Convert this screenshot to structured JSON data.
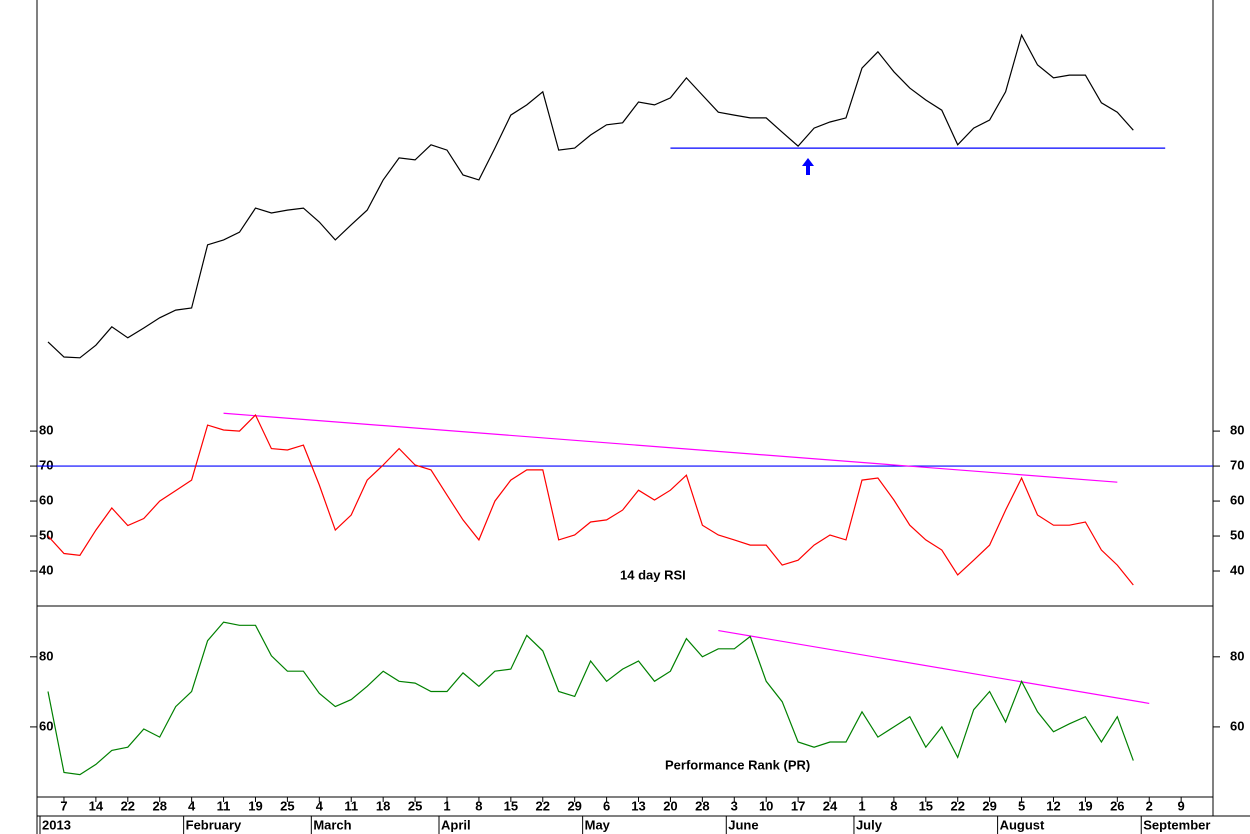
{
  "chart_data": {
    "type": "line",
    "categories": [
      null,
      "7",
      null,
      "14",
      null,
      "22",
      null,
      "28",
      null,
      "4",
      null,
      "11",
      null,
      "19",
      null,
      "25",
      null,
      "4",
      null,
      "11",
      null,
      "18",
      null,
      "25",
      null,
      "1",
      null,
      "8",
      null,
      "15",
      null,
      "22",
      null,
      "29",
      null,
      "6",
      null,
      "13",
      null,
      "20",
      null,
      "28",
      null,
      "3",
      null,
      "10",
      null,
      "17",
      null,
      "24",
      null,
      "1",
      null,
      "8",
      null,
      "15",
      null,
      "22",
      null,
      "29",
      null,
      "5",
      null,
      "12",
      null,
      "19",
      null,
      "26",
      null,
      "2",
      null,
      "9",
      null,
      null
    ],
    "months": [
      "2013",
      null,
      null,
      null,
      null,
      null,
      null,
      null,
      null,
      "February",
      null,
      null,
      null,
      null,
      null,
      null,
      null,
      "March",
      null,
      null,
      null,
      null,
      null,
      null,
      null,
      "April",
      null,
      null,
      null,
      null,
      null,
      null,
      null,
      null,
      "May",
      null,
      null,
      null,
      null,
      null,
      null,
      null,
      null,
      "June",
      null,
      null,
      null,
      null,
      null,
      null,
      null,
      "July",
      null,
      null,
      null,
      null,
      null,
      null,
      null,
      null,
      "August",
      null,
      null,
      null,
      null,
      null,
      null,
      null,
      null,
      "September",
      null,
      null,
      null,
      null
    ],
    "panels": [
      {
        "ylim": [
          0,
          100
        ],
        "series": [
          {
            "color": "#000000",
            "values": [
              16.2,
              12.5,
              12.3,
              15.4,
              19.9,
              17.2,
              19.6,
              22.1,
              24.0,
              24.5,
              40.0,
              41.2,
              43.1,
              49.0,
              47.8,
              48.5,
              49.0,
              45.6,
              41.2,
              44.9,
              48.5,
              55.9,
              61.3,
              60.8,
              64.5,
              63.2,
              57.1,
              55.9,
              63.7,
              71.8,
              74.3,
              77.5,
              63.2,
              63.7,
              66.9,
              69.4,
              69.9,
              75.0,
              74.3,
              76.0,
              80.9,
              76.7,
              72.5,
              71.8,
              71.1,
              71.1,
              67.6,
              64.2,
              68.6,
              70.1,
              71.1,
              83.3,
              87.3,
              82.4,
              78.4,
              75.5,
              73.0,
              64.5,
              68.6,
              70.6,
              77.5,
              91.4,
              84.1,
              80.9,
              81.6,
              81.6,
              74.8,
              72.5,
              68.1,
              null,
              null,
              null,
              null,
              null
            ]
          }
        ],
        "hlines": [
          {
            "value": 63.7,
            "color": "#0000ff",
            "x": [
              39,
              70
            ]
          }
        ]
      },
      {
        "ylim": [
          30,
          86.6
        ],
        "yticks": [
          40,
          50,
          60,
          70,
          80
        ],
        "series": [
          {
            "name": "14 day RSI",
            "color": "#ff0000",
            "values": [
              50,
              45,
              44.5,
              51.7,
              58,
              53,
              55,
              60,
              63,
              66,
              81.7,
              80.3,
              80,
              84.6,
              75,
              74.6,
              76,
              64.6,
              51.7,
              56,
              66,
              70.3,
              75,
              70.3,
              68.9,
              61.7,
              54.6,
              48.9,
              60,
              66,
              68.9,
              68.9,
              48.9,
              50.3,
              54,
              54.6,
              57.4,
              63.1,
              60.3,
              63.1,
              67.4,
              53.1,
              50.3,
              48.9,
              47.4,
              47.4,
              41.7,
              43.1,
              47.4,
              50.3,
              48.9,
              66,
              66.6,
              60.3,
              53.1,
              48.9,
              46,
              38.9,
              43.1,
              47.4,
              57.4,
              66.6,
              56,
              53.1,
              53.1,
              54,
              46,
              41.7,
              36,
              null,
              null,
              null,
              null,
              null
            ]
          }
        ],
        "hlines": [
          {
            "value": 70,
            "color": "#0000ff"
          }
        ],
        "trendlines": [
          {
            "x": [
              11,
              67
            ],
            "y": [
              85.1,
              65.4
            ],
            "color": "#ff00ff"
          }
        ]
      },
      {
        "ylim": [
          40,
          94.5
        ],
        "yticks": [
          60,
          80
        ],
        "series": [
          {
            "name": "Performance Rank (PR)",
            "color": "#008000",
            "values": [
              70.1,
              47,
              46.4,
              49.3,
              53.3,
              54.2,
              59.4,
              57.1,
              65.8,
              70.1,
              84.6,
              89.9,
              89,
              89,
              80.3,
              75.9,
              75.9,
              69.6,
              65.8,
              67.8,
              71.6,
              75.9,
              73,
              72.5,
              70.1,
              70.1,
              75.4,
              71.6,
              75.9,
              76.5,
              86.1,
              81.7,
              70.1,
              68.7,
              78.8,
              73,
              76.5,
              78.8,
              73,
              75.9,
              85.2,
              80,
              82.3,
              82.3,
              85.8,
              73,
              67.2,
              55.7,
              54.2,
              55.7,
              55.7,
              64.3,
              57.1,
              60,
              62.9,
              54.2,
              60,
              51.3,
              64.9,
              70.1,
              61.4,
              73,
              64.3,
              58.6,
              60.9,
              62.9,
              55.7,
              62.9,
              50.4,
              null,
              null,
              null,
              null,
              null
            ]
          }
        ],
        "trendlines": [
          {
            "x": [
              42,
              69
            ],
            "y": [
              87.5,
              66.7
            ],
            "color": "#ff00ff"
          }
        ]
      }
    ]
  }
}
